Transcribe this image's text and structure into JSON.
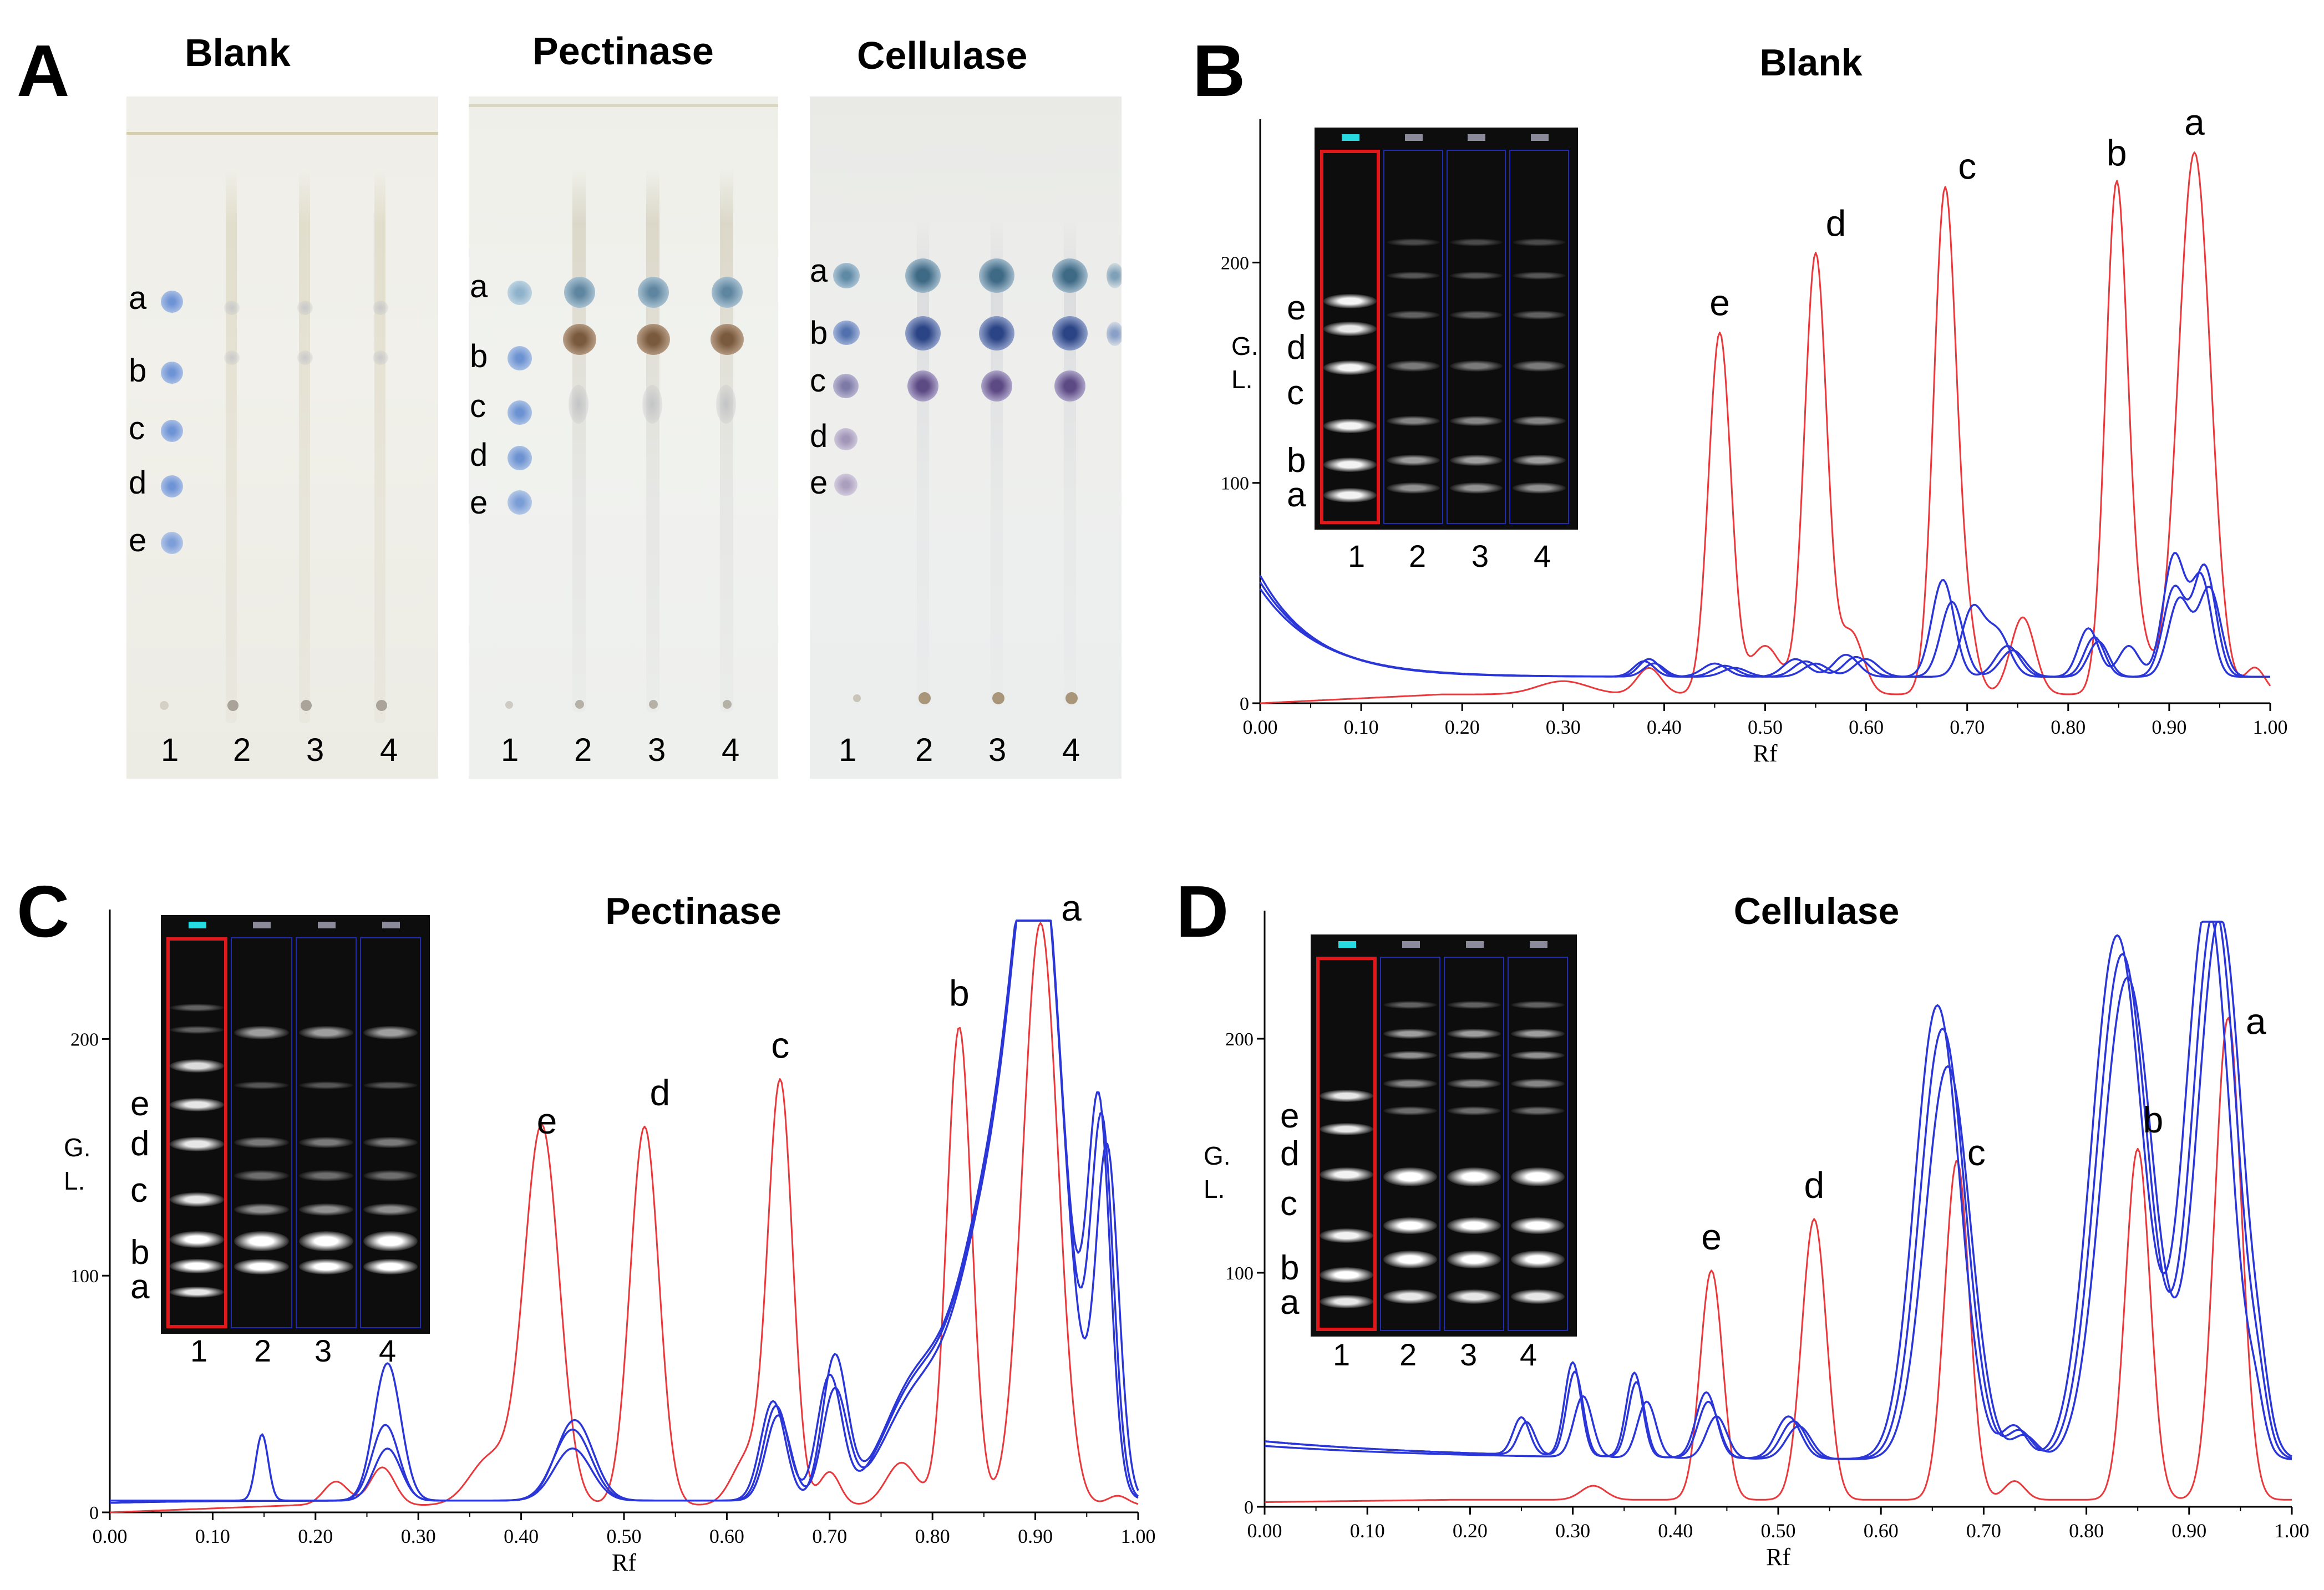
{
  "panels": {
    "A": {
      "letter": "A",
      "titles": [
        "Blank",
        "Pectinase",
        "Cellulase"
      ],
      "lane_labels": [
        "1",
        "2",
        "3",
        "4"
      ],
      "spot_labels": [
        "a",
        "b",
        "c",
        "d",
        "e"
      ]
    },
    "B": {
      "letter": "B"
    },
    "C": {
      "letter": "C"
    },
    "D": {
      "letter": "D"
    }
  },
  "gel": {
    "lane_labels": [
      "1",
      "2",
      "3",
      "4"
    ],
    "band_labels": [
      "e",
      "d",
      "c",
      "b",
      "a"
    ]
  },
  "colors": {
    "standard": "#e8393c",
    "sample": "#2b36d8",
    "text": "#000000"
  },
  "chart_data": [
    {
      "id": "B",
      "type": "line",
      "title": "Blank",
      "xlabel": "Rf",
      "ylabel_lines": [
        "G.",
        "L."
      ],
      "xlim": [
        0,
        1.0
      ],
      "ylim": [
        0,
        260
      ],
      "xticks": [
        "0.00",
        "0.10",
        "0.20",
        "0.30",
        "0.40",
        "0.50",
        "0.60",
        "0.70",
        "0.80",
        "0.90",
        "1.00"
      ],
      "yticks": [
        "0",
        "100",
        "200"
      ],
      "baseline": {
        "standard": 4,
        "sample": 12
      },
      "series": [
        {
          "name": "standard",
          "color": "#e8393c",
          "start": 0,
          "peaks": [
            [
              0.3,
              6,
              0.025
            ],
            [
              0.385,
              12,
              0.012
            ],
            [
              0.455,
              164,
              0.011
            ],
            [
              0.5,
              22,
              0.015
            ],
            [
              0.55,
              200,
              0.011
            ],
            [
              0.585,
              28,
              0.012
            ],
            [
              0.678,
              228,
              0.011
            ],
            [
              0.7,
              26,
              0.01
            ],
            [
              0.755,
              35,
              0.012
            ],
            [
              0.848,
              232,
              0.011
            ],
            [
              0.872,
              20,
              0.01
            ],
            [
              0.925,
              246,
              0.016
            ],
            [
              0.985,
              12,
              0.01
            ]
          ]
        },
        {
          "name": "sample 2",
          "color": "#2b36d8",
          "start": 58,
          "decay": 0.055,
          "peaks": [
            [
              0.385,
              8,
              0.01
            ],
            [
              0.45,
              6,
              0.012
            ],
            [
              0.53,
              8,
              0.012
            ],
            [
              0.58,
              10,
              0.012
            ],
            [
              0.676,
              44,
              0.011
            ],
            [
              0.74,
              14,
              0.012
            ],
            [
              0.82,
              22,
              0.01
            ],
            [
              0.86,
              14,
              0.01
            ],
            [
              0.905,
              55,
              0.011
            ],
            [
              0.932,
              44,
              0.01
            ]
          ]
        },
        {
          "name": "sample 3",
          "color": "#2b36d8",
          "start": 52,
          "decay": 0.06,
          "peaks": [
            [
              0.39,
              6,
              0.01
            ],
            [
              0.47,
              4,
              0.012
            ],
            [
              0.55,
              6,
              0.012
            ],
            [
              0.6,
              8,
              0.012
            ],
            [
              0.685,
              34,
              0.011
            ],
            [
              0.745,
              12,
              0.012
            ],
            [
              0.826,
              18,
              0.01
            ],
            [
              0.905,
              40,
              0.011
            ],
            [
              0.935,
              50,
              0.011
            ]
          ]
        },
        {
          "name": "sample 4",
          "color": "#2b36d8",
          "start": 55,
          "decay": 0.058,
          "peaks": [
            [
              0.38,
              7,
              0.01
            ],
            [
              0.46,
              5,
              0.012
            ],
            [
              0.54,
              7,
              0.012
            ],
            [
              0.59,
              9,
              0.012
            ],
            [
              0.705,
              30,
              0.011
            ],
            [
              0.73,
              20,
              0.012
            ],
            [
              0.83,
              16,
              0.01
            ],
            [
              0.91,
              35,
              0.011
            ],
            [
              0.94,
              40,
              0.011
            ]
          ]
        }
      ],
      "peak_labels": [
        {
          "text": "e",
          "x": 0.455,
          "y": 176
        },
        {
          "text": "d",
          "x": 0.57,
          "y": 212
        },
        {
          "text": "c",
          "x": 0.7,
          "y": 238
        },
        {
          "text": "b",
          "x": 0.848,
          "y": 244
        },
        {
          "text": "a",
          "x": 0.925,
          "y": 258
        }
      ]
    },
    {
      "id": "C",
      "type": "line",
      "title": "Pectinase",
      "xlabel": "Rf",
      "ylabel_lines": [
        "G.",
        "L."
      ],
      "xlim": [
        0,
        1.0
      ],
      "ylim": [
        0,
        250
      ],
      "xticks": [
        "0.00",
        "0.10",
        "0.20",
        "0.30",
        "0.40",
        "0.50",
        "0.60",
        "0.70",
        "0.80",
        "0.90",
        "1.00"
      ],
      "yticks": [
        "0",
        "100",
        "200"
      ],
      "baseline": {
        "standard": 3,
        "sample": 5
      },
      "series": [
        {
          "name": "standard",
          "color": "#e8393c",
          "start": 0,
          "peaks": [
            [
              0.22,
              10,
              0.012
            ],
            [
              0.265,
              16,
              0.012
            ],
            [
              0.37,
              20,
              0.02
            ],
            [
              0.42,
              160,
              0.017
            ],
            [
              0.52,
              160,
              0.014
            ],
            [
              0.62,
              20,
              0.015
            ],
            [
              0.652,
              178,
              0.012
            ],
            [
              0.7,
              14,
              0.01
            ],
            [
              0.77,
              18,
              0.015
            ],
            [
              0.826,
              202,
              0.012
            ],
            [
              0.905,
              246,
              0.017
            ],
            [
              0.98,
              4,
              0.01
            ]
          ]
        },
        {
          "name": "sample 2",
          "color": "#2b36d8",
          "start": 5,
          "decay": 0.08,
          "peaks": [
            [
              0.148,
              28,
              0.006
            ],
            [
              0.27,
              58,
              0.013
            ],
            [
              0.45,
              30,
              0.018
            ],
            [
              0.645,
              42,
              0.012
            ],
            [
              0.705,
              60,
              0.012
            ],
            [
              0.78,
              42,
              0.03
            ],
            [
              0.87,
              150,
              0.04
            ],
            [
              0.905,
              185,
              0.022
            ],
            [
              0.965,
              150,
              0.011
            ]
          ]
        },
        {
          "name": "sample 3",
          "color": "#2b36d8",
          "start": 4,
          "decay": 0.08,
          "peaks": [
            [
              0.268,
              32,
              0.013
            ],
            [
              0.452,
              34,
              0.018
            ],
            [
              0.648,
              40,
              0.012
            ],
            [
              0.7,
              52,
              0.012
            ],
            [
              0.78,
              40,
              0.03
            ],
            [
              0.87,
              148,
              0.04
            ],
            [
              0.905,
              188,
              0.022
            ],
            [
              0.962,
              155,
              0.011
            ]
          ]
        },
        {
          "name": "sample 4",
          "color": "#2b36d8",
          "start": 4,
          "decay": 0.08,
          "peaks": [
            [
              0.27,
              22,
              0.013
            ],
            [
              0.45,
              22,
              0.018
            ],
            [
              0.65,
              36,
              0.012
            ],
            [
              0.705,
              46,
              0.012
            ],
            [
              0.78,
              36,
              0.03
            ],
            [
              0.87,
              145,
              0.04
            ],
            [
              0.905,
              186,
              0.022
            ],
            [
              0.97,
              142,
              0.011
            ]
          ]
        }
      ],
      "peak_labels": [
        {
          "text": "e",
          "x": 0.425,
          "y": 160
        },
        {
          "text": "d",
          "x": 0.535,
          "y": 172
        },
        {
          "text": "c",
          "x": 0.652,
          "y": 192
        },
        {
          "text": "b",
          "x": 0.826,
          "y": 214
        },
        {
          "text": "a",
          "x": 0.935,
          "y": 250
        }
      ]
    },
    {
      "id": "D",
      "type": "line",
      "title": "Cellulase",
      "xlabel": "Rf",
      "ylabel_lines": [
        "G.",
        "L."
      ],
      "xlim": [
        0,
        1.0
      ],
      "ylim": [
        0,
        250
      ],
      "xticks": [
        "0.00",
        "0.10",
        "0.20",
        "0.30",
        "0.40",
        "0.50",
        "0.60",
        "0.70",
        "0.80",
        "0.90",
        "1.00"
      ],
      "yticks": [
        "0",
        "100",
        "200"
      ],
      "baseline": {
        "standard": 3,
        "sample": 20
      },
      "series": [
        {
          "name": "standard",
          "color": "#e8393c",
          "start": 2,
          "peaks": [
            [
              0.32,
              6,
              0.012
            ],
            [
              0.435,
              98,
              0.011
            ],
            [
              0.535,
              120,
              0.012
            ],
            [
              0.674,
              145,
              0.012
            ],
            [
              0.73,
              8,
              0.01
            ],
            [
              0.85,
              150,
              0.012
            ],
            [
              0.938,
              206,
              0.013
            ]
          ]
        },
        {
          "name": "sample 2",
          "color": "#2b36d8",
          "start": 28,
          "decay": 0.2,
          "peaks": [
            [
              0.25,
              16,
              0.008
            ],
            [
              0.3,
              40,
              0.008
            ],
            [
              0.36,
              36,
              0.008
            ],
            [
              0.43,
              28,
              0.01
            ],
            [
              0.51,
              18,
              0.012
            ],
            [
              0.655,
              194,
              0.022
            ],
            [
              0.73,
              14,
              0.012
            ],
            [
              0.83,
              224,
              0.025
            ],
            [
              0.918,
              238,
              0.022
            ],
            [
              0.965,
              15,
              0.008
            ]
          ]
        },
        {
          "name": "sample 3",
          "color": "#2b36d8",
          "start": 28,
          "decay": 0.2,
          "peaks": [
            [
              0.255,
              14,
              0.008
            ],
            [
              0.302,
              36,
              0.008
            ],
            [
              0.362,
              32,
              0.008
            ],
            [
              0.432,
              24,
              0.01
            ],
            [
              0.515,
              16,
              0.012
            ],
            [
              0.66,
              184,
              0.022
            ],
            [
              0.735,
              12,
              0.012
            ],
            [
              0.835,
              216,
              0.025
            ],
            [
              0.925,
              236,
              0.022
            ],
            [
              0.968,
              14,
              0.008
            ]
          ]
        },
        {
          "name": "sample 4",
          "color": "#2b36d8",
          "start": 26,
          "decay": 0.2,
          "peaks": [
            [
              0.31,
              26,
              0.009
            ],
            [
              0.372,
              24,
              0.009
            ],
            [
              0.44,
              18,
              0.01
            ],
            [
              0.52,
              14,
              0.012
            ],
            [
              0.665,
              168,
              0.022
            ],
            [
              0.74,
              10,
              0.012
            ],
            [
              0.84,
              206,
              0.025
            ],
            [
              0.93,
              232,
              0.022
            ],
            [
              0.97,
              12,
              0.008
            ]
          ]
        }
      ],
      "peak_labels": [
        {
          "text": "e",
          "x": 0.435,
          "y": 110
        },
        {
          "text": "d",
          "x": 0.535,
          "y": 132
        },
        {
          "text": "c",
          "x": 0.693,
          "y": 146
        },
        {
          "text": "b",
          "x": 0.865,
          "y": 160
        },
        {
          "text": "a",
          "x": 0.965,
          "y": 202
        }
      ]
    }
  ]
}
